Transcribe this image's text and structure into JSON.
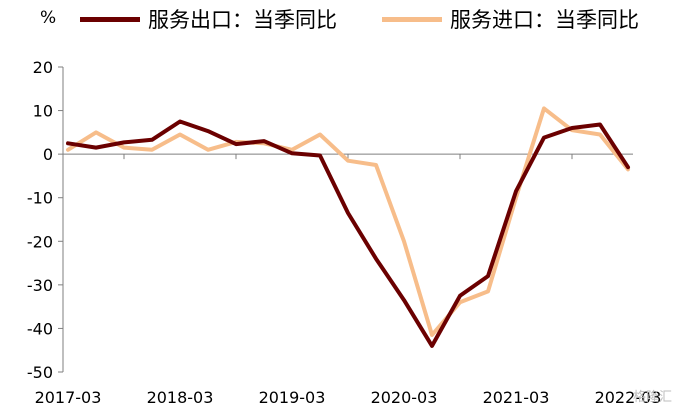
{
  "unit_label": "%",
  "watermark": "格隆汇",
  "chart_data": {
    "type": "line",
    "ylim": [
      -50,
      20
    ],
    "yticks": [
      -50,
      -40,
      -30,
      -20,
      -10,
      0,
      10,
      20
    ],
    "x": [
      "2017-03",
      "2017-06",
      "2017-09",
      "2017-12",
      "2018-03",
      "2018-06",
      "2018-09",
      "2018-12",
      "2019-03",
      "2019-06",
      "2019-09",
      "2019-12",
      "2020-03",
      "2020-06",
      "2020-09",
      "2020-12",
      "2021-03",
      "2021-06",
      "2021-09",
      "2021-12",
      "2022-03"
    ],
    "xtick_labels": [
      "2017-03",
      "2018-03",
      "2019-03",
      "2020-03",
      "2021-03",
      "2022-03"
    ],
    "series": [
      {
        "name": "服务出口：当季同比",
        "color": "#6b0000",
        "values": [
          2.5,
          1.5,
          2.7,
          3.3,
          7.5,
          5.3,
          2.3,
          3.0,
          0.2,
          -0.3,
          -13.5,
          -24.0,
          -33.5,
          -44.0,
          -32.5,
          -28.0,
          -8.5,
          3.8,
          6.0,
          6.8,
          -3.0
        ]
      },
      {
        "name": "服务进口：当季同比",
        "color": "#f7bd8a",
        "values": [
          1.0,
          5.0,
          1.5,
          1.0,
          4.5,
          1.0,
          2.8,
          2.5,
          1.0,
          4.5,
          -1.5,
          -2.5,
          -20.0,
          -41.5,
          -34.0,
          -31.5,
          -10.0,
          10.5,
          5.5,
          4.5,
          -3.5
        ]
      }
    ]
  }
}
